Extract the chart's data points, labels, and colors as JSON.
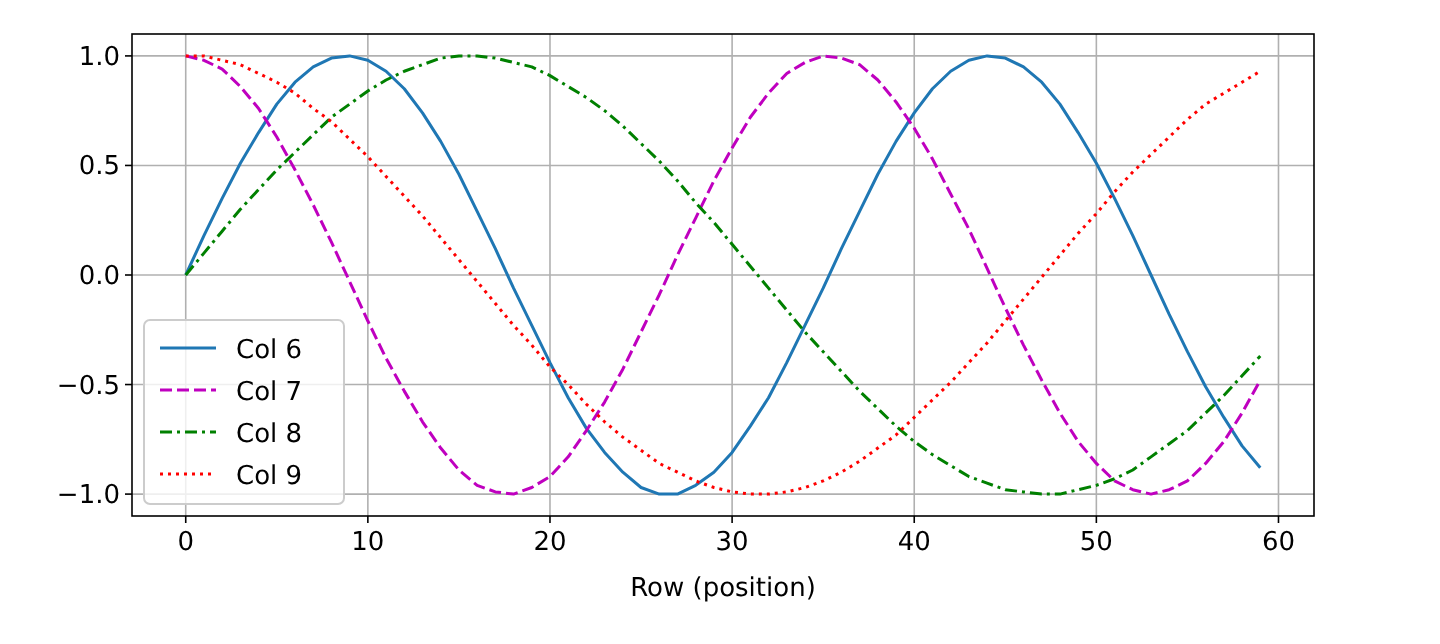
{
  "chart_data": {
    "type": "line",
    "xlabel": "Row (position)",
    "x": [
      0,
      1,
      2,
      3,
      4,
      5,
      6,
      7,
      8,
      9,
      10,
      11,
      12,
      13,
      14,
      15,
      16,
      17,
      18,
      19,
      20,
      21,
      22,
      23,
      24,
      25,
      26,
      27,
      28,
      29,
      30,
      31,
      32,
      33,
      34,
      35,
      36,
      37,
      38,
      39,
      40,
      41,
      42,
      43,
      44,
      45,
      46,
      47,
      48,
      49,
      50,
      51,
      52,
      53,
      54,
      55,
      56,
      57,
      58,
      59
    ],
    "series": [
      {
        "name": "Col 6",
        "color": "#1f77b4",
        "line_style": "solid",
        "values": [
          0,
          0.18,
          0.35,
          0.51,
          0.65,
          0.78,
          0.88,
          0.95,
          0.99,
          1.0,
          0.98,
          0.93,
          0.85,
          0.74,
          0.61,
          0.46,
          0.29,
          0.12,
          -0.06,
          -0.23,
          -0.4,
          -0.56,
          -0.7,
          -0.81,
          -0.9,
          -0.97,
          -1.0,
          -1.0,
          -0.96,
          -0.9,
          -0.81,
          -0.69,
          -0.56,
          -0.4,
          -0.23,
          -0.06,
          0.12,
          0.29,
          0.46,
          0.61,
          0.74,
          0.85,
          0.93,
          0.98,
          1.0,
          0.99,
          0.95,
          0.88,
          0.78,
          0.65,
          0.51,
          0.35,
          0.18,
          0.0,
          -0.18,
          -0.35,
          -0.51,
          -0.65,
          -0.78,
          -0.88
        ]
      },
      {
        "name": "Col 7",
        "color": "#bf00bf",
        "line_style": "dashed",
        "values": [
          1,
          0.98,
          0.94,
          0.86,
          0.76,
          0.63,
          0.48,
          0.32,
          0.15,
          -0.03,
          -0.21,
          -0.38,
          -0.53,
          -0.67,
          -0.79,
          -0.89,
          -0.96,
          -0.99,
          -1.0,
          -0.97,
          -0.92,
          -0.83,
          -0.71,
          -0.58,
          -0.43,
          -0.26,
          -0.09,
          0.09,
          0.26,
          0.43,
          0.58,
          0.72,
          0.83,
          0.92,
          0.97,
          1.0,
          0.99,
          0.96,
          0.89,
          0.79,
          0.67,
          0.53,
          0.37,
          0.21,
          0.03,
          -0.15,
          -0.32,
          -0.48,
          -0.63,
          -0.76,
          -0.86,
          -0.94,
          -0.98,
          -1.0,
          -0.98,
          -0.94,
          -0.86,
          -0.76,
          -0.63,
          -0.48
        ]
      },
      {
        "name": "Col 8",
        "color": "#008000",
        "line_style": "dashdot",
        "values": [
          0,
          0.1,
          0.2,
          0.3,
          0.39,
          0.48,
          0.56,
          0.64,
          0.72,
          0.78,
          0.84,
          0.89,
          0.93,
          0.96,
          0.99,
          1.0,
          1.0,
          0.99,
          0.97,
          0.95,
          0.91,
          0.86,
          0.81,
          0.75,
          0.68,
          0.6,
          0.52,
          0.43,
          0.33,
          0.24,
          0.14,
          0.04,
          -0.06,
          -0.16,
          -0.26,
          -0.35,
          -0.44,
          -0.53,
          -0.61,
          -0.69,
          -0.76,
          -0.82,
          -0.87,
          -0.92,
          -0.95,
          -0.98,
          -0.99,
          -1.0,
          -1.0,
          -0.98,
          -0.96,
          -0.93,
          -0.89,
          -0.83,
          -0.77,
          -0.71,
          -0.63,
          -0.55,
          -0.46,
          -0.37
        ]
      },
      {
        "name": "Col 9",
        "color": "#ff0000",
        "line_style": "dotted",
        "values": [
          1,
          1.0,
          0.98,
          0.96,
          0.92,
          0.88,
          0.83,
          0.76,
          0.7,
          0.62,
          0.54,
          0.45,
          0.36,
          0.27,
          0.17,
          0.07,
          -0.03,
          -0.13,
          -0.23,
          -0.32,
          -0.42,
          -0.5,
          -0.59,
          -0.67,
          -0.74,
          -0.8,
          -0.86,
          -0.9,
          -0.94,
          -0.97,
          -0.99,
          -1.0,
          -1.0,
          -0.99,
          -0.97,
          -0.94,
          -0.9,
          -0.85,
          -0.79,
          -0.73,
          -0.65,
          -0.57,
          -0.49,
          -0.4,
          -0.31,
          -0.21,
          -0.11,
          -0.01,
          0.09,
          0.19,
          0.28,
          0.38,
          0.47,
          0.55,
          0.63,
          0.71,
          0.78,
          0.83,
          0.88,
          0.93
        ]
      }
    ],
    "xlim": [
      -2.95,
      61.95
    ],
    "xticks": [
      0,
      10,
      20,
      30,
      40,
      50,
      60
    ],
    "ylim": [
      -1.1,
      1.1
    ],
    "yticks": [
      {
        "value": -1,
        "label": "−1.0"
      },
      {
        "value": -0.5,
        "label": "−0.5"
      },
      {
        "value": 0,
        "label": "0.0"
      },
      {
        "value": 0.5,
        "label": "0.5"
      },
      {
        "value": 1,
        "label": "1.0"
      }
    ],
    "grid": true,
    "legend": "bottom left"
  }
}
